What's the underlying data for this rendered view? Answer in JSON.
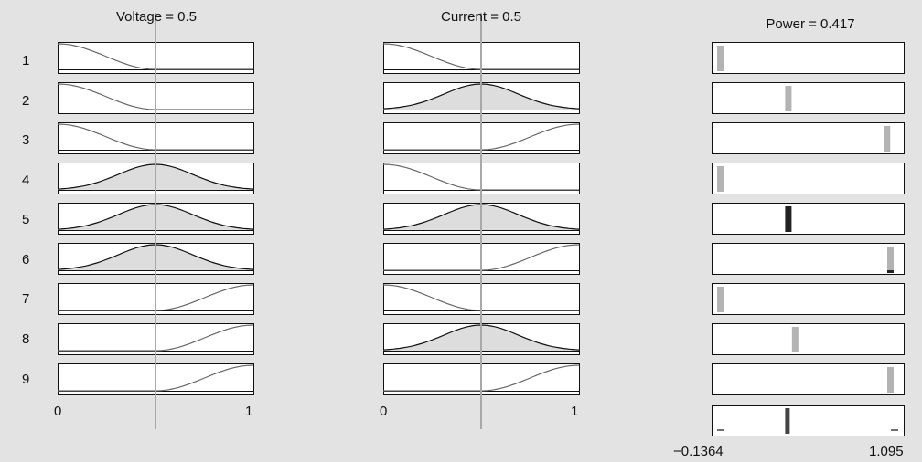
{
  "rule_viewer": {
    "inputs": [
      {
        "title": "Voltage = 0.5",
        "value": 0.5,
        "range": [
          0,
          1
        ],
        "tick_min": "0",
        "tick_max": "1",
        "rules": [
          "z",
          "z",
          "z",
          "gauss",
          "gauss",
          "gauss",
          "s",
          "s",
          "s"
        ]
      },
      {
        "title": "Current = 0.5",
        "value": 0.5,
        "range": [
          0,
          1
        ],
        "tick_min": "0",
        "tick_max": "1",
        "rules": [
          "z",
          "gauss",
          "s",
          "z",
          "gauss",
          "s",
          "z",
          "gauss",
          "s"
        ]
      }
    ],
    "output": {
      "title": "Power = 0.417",
      "value": 0.417,
      "range": [
        -0.1364,
        1.095
      ],
      "tick_min": "−0.1364",
      "tick_max": "1.095",
      "rule_positions": [
        0.0,
        0.4,
        0.98,
        0.0,
        0.4,
        1.0,
        0.0,
        0.44,
        1.02
      ],
      "aggregate_position": 0.4
    },
    "row_labels": [
      "1",
      "2",
      "3",
      "4",
      "5",
      "6",
      "7",
      "8",
      "9"
    ],
    "colors": {
      "background": "#e3e3e3",
      "panel_fill": "#ffffff",
      "curve": "#666666",
      "curve_peak": "#111111",
      "area_fill": "#dddddd",
      "indicator_line": "#a8a8a8",
      "output_bar": "#b3b3b3",
      "output_bar_active": "#222222"
    }
  }
}
